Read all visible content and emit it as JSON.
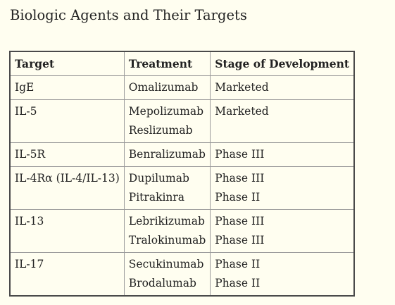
{
  "title": "Biologic Agents and Their Targets",
  "table": {
    "headers": [
      "Target",
      "Treatment",
      "Stage of Development"
    ],
    "rows": [
      {
        "target": "IgE",
        "treatments": [
          "Omalizumab"
        ],
        "stages": [
          "Marketed"
        ]
      },
      {
        "target": "IL-5",
        "treatments": [
          "Mepolizumab",
          "Reslizumab"
        ],
        "stages": [
          "Marketed"
        ]
      },
      {
        "target": "IL-5R",
        "treatments": [
          "Benralizumab"
        ],
        "stages": [
          "Phase III"
        ]
      },
      {
        "target": "IL-4Rα (IL-4/IL-13)",
        "treatments": [
          "Dupilumab",
          "Pitrakinra"
        ],
        "stages": [
          "Phase III",
          "Phase II"
        ]
      },
      {
        "target": "IL-13",
        "treatments": [
          "Lebrikizumab",
          "Tralokinumab"
        ],
        "stages": [
          "Phase III",
          "Phase III"
        ]
      },
      {
        "target": "IL-17",
        "treatments": [
          "Secukinumab",
          "Brodalumab"
        ],
        "stages": [
          "Phase II",
          "Phase II"
        ]
      }
    ]
  }
}
